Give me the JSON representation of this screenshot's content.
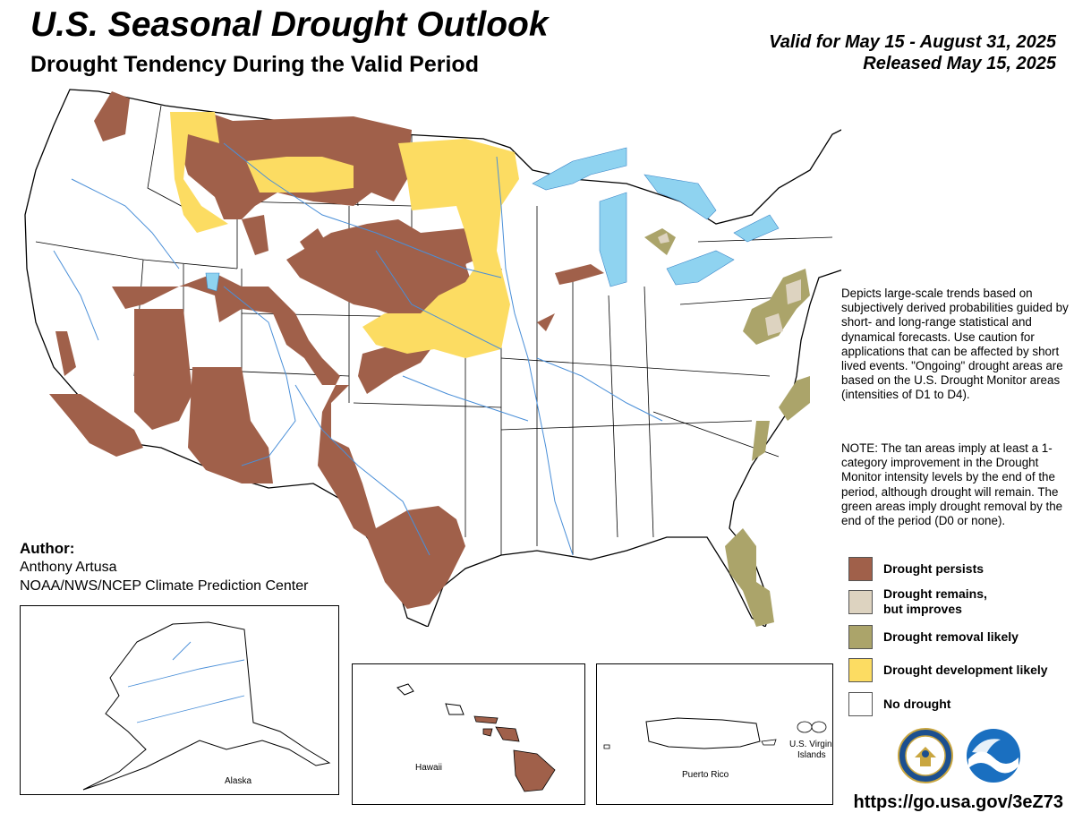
{
  "header": {
    "title": "U.S. Seasonal Drought Outlook",
    "subtitle": "Drought Tendency During the Valid Period",
    "valid": "Valid for May 15 - August 31, 2025",
    "released": "Released May 15, 2025"
  },
  "description": "Depicts large-scale trends based on subjectively derived probabilities guided by short- and long-range statistical and dynamical forecasts. Use caution for applications that can be affected by short lived events. \"Ongoing\" drought areas are based on the U.S. Drought Monitor areas (intensities of D1 to D4).",
  "note": "NOTE: The tan areas imply at least a 1-category improvement in the Drought Monitor intensity levels by the end of the period, although drought will remain. The green areas imply drought removal by the end of the period (D0 or none).",
  "legend": [
    {
      "label": "Drought persists",
      "color": "#a0604a"
    },
    {
      "label": "Drought remains,",
      "label2": "but improves",
      "color": "#ddd3c0"
    },
    {
      "label": "Drought removal likely",
      "color": "#aba46a"
    },
    {
      "label": "Drought development likely",
      "color": "#fcdc62"
    },
    {
      "label": "No drought",
      "color": "#ffffff"
    }
  ],
  "author": {
    "label": "Author:",
    "name": "Anthony Artusa",
    "org": "NOAA/NWS/NCEP Climate Prediction Center"
  },
  "insets": {
    "alaska": "Alaska",
    "hawaii": "Hawaii",
    "puerto_rico": "Puerto Rico",
    "virgin_islands_1": "U.S. Virgin",
    "virgin_islands_2": "Islands"
  },
  "url": "https://go.usa.gov/3eZ73",
  "colors": {
    "persists": "#a0604a",
    "improves": "#ddd3c0",
    "removal": "#aba46a",
    "development": "#fcdc62",
    "water": "#8fd3f0",
    "river": "#4a8fd8"
  }
}
